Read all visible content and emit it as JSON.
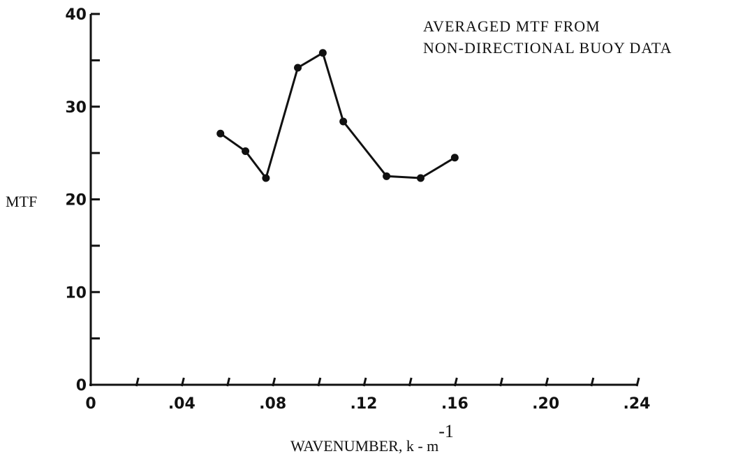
{
  "chart_data": {
    "type": "line",
    "title_lines": [
      "AVERAGED MTF FROM",
      "NON-DIRECTIONAL BUOY DATA"
    ],
    "xlabel": "WAVENUMBER, k - m",
    "xlabel_sup": "-1",
    "ylabel": "MTF",
    "xlim": [
      0,
      0.24
    ],
    "ylim": [
      0,
      40
    ],
    "x_ticks": [
      0,
      0.02,
      0.04,
      0.06,
      0.08,
      0.1,
      0.12,
      0.14,
      0.16,
      0.18,
      0.2,
      0.22,
      0.24
    ],
    "x_tick_labels": [
      {
        "value": 0,
        "label": "0"
      },
      {
        "value": 0.04,
        "label": ".04"
      },
      {
        "value": 0.08,
        "label": ".08"
      },
      {
        "value": 0.12,
        "label": ".12"
      },
      {
        "value": 0.16,
        "label": ".16"
      },
      {
        "value": 0.2,
        "label": ".20"
      },
      {
        "value": 0.24,
        "label": ".24"
      }
    ],
    "y_ticks": [
      0,
      5,
      10,
      15,
      20,
      25,
      30,
      35,
      40
    ],
    "y_tick_labels": [
      {
        "value": 0,
        "label": "0"
      },
      {
        "value": 10,
        "label": "10"
      },
      {
        "value": 20,
        "label": "20"
      },
      {
        "value": 30,
        "label": "30"
      },
      {
        "value": 40,
        "label": "40"
      }
    ],
    "grid": false,
    "series": [
      {
        "x": [
          0.057,
          0.068,
          0.077,
          0.091,
          0.102,
          0.111,
          0.13,
          0.145,
          0.16
        ],
        "y": [
          27.1,
          25.2,
          22.3,
          34.2,
          35.8,
          28.4,
          22.5,
          22.3,
          24.5
        ]
      }
    ]
  }
}
